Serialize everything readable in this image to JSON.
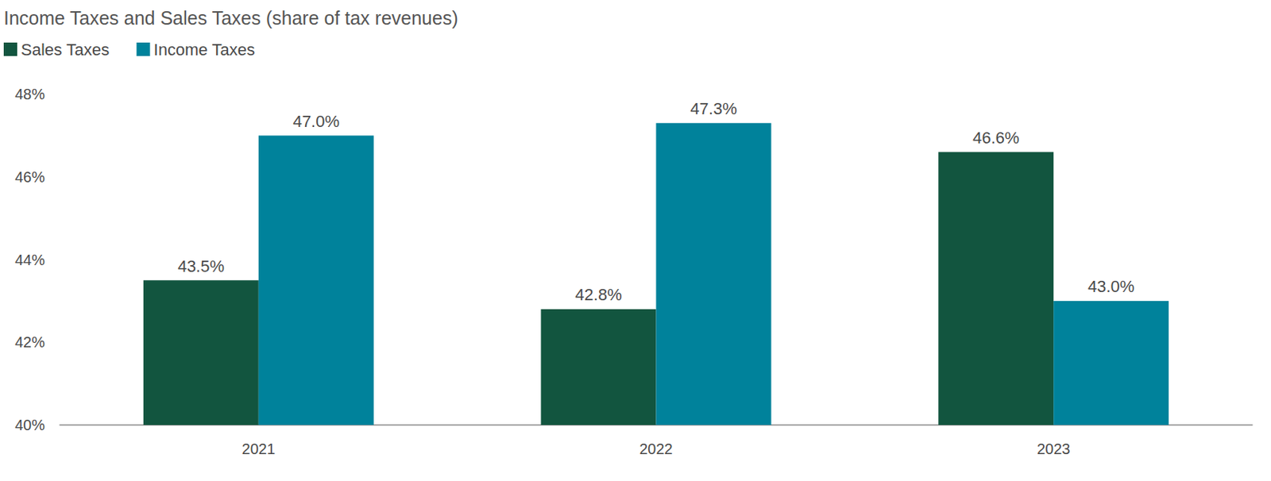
{
  "chart_data": {
    "type": "bar",
    "title": "Income Taxes and Sales Taxes (share of tax revenues)",
    "categories": [
      "2021",
      "2022",
      "2023"
    ],
    "series": [
      {
        "name": "Sales Taxes",
        "color": "#12553f",
        "values": [
          43.5,
          42.8,
          46.6
        ],
        "value_labels": [
          "43.5%",
          "42.8%",
          "46.6%"
        ]
      },
      {
        "name": "Income Taxes",
        "color": "#00829b",
        "values": [
          47.0,
          47.3,
          43.0
        ],
        "value_labels": [
          "47.0%",
          "47.3%",
          "43.0%"
        ]
      }
    ],
    "ylim": [
      40,
      48
    ],
    "yticks": [
      {
        "value": 40,
        "label": "40%"
      },
      {
        "value": 42,
        "label": "42%"
      },
      {
        "value": 44,
        "label": "44%"
      },
      {
        "value": 46,
        "label": "46%"
      },
      {
        "value": 48,
        "label": "48%"
      }
    ],
    "grid": false,
    "legend": "top-left",
    "data_labels": true
  }
}
